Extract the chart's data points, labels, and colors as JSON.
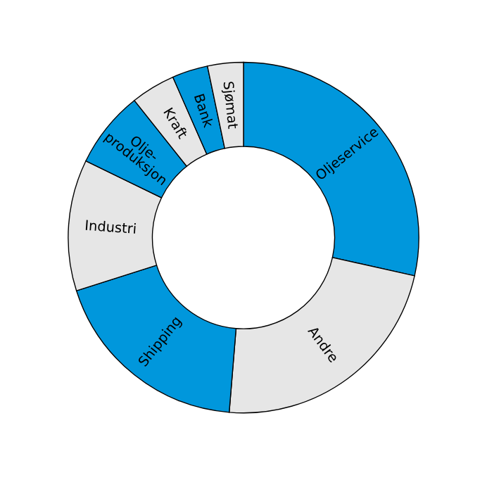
{
  "chart_data": {
    "type": "donut",
    "categories": [
      "Oljeservice",
      "Andre",
      "Shipping",
      "Industri",
      "Olje-\nproduksjon",
      "Kraft",
      "Bank",
      "Sjømat"
    ],
    "values": [
      28.5,
      22.8,
      18.8,
      12.1,
      7.1,
      4.1,
      3.3,
      3.3
    ],
    "colors": [
      "#0097dc",
      "#e6e6e6",
      "#0097dc",
      "#e6e6e6",
      "#0097dc",
      "#e6e6e6",
      "#0097dc",
      "#e6e6e6"
    ]
  }
}
